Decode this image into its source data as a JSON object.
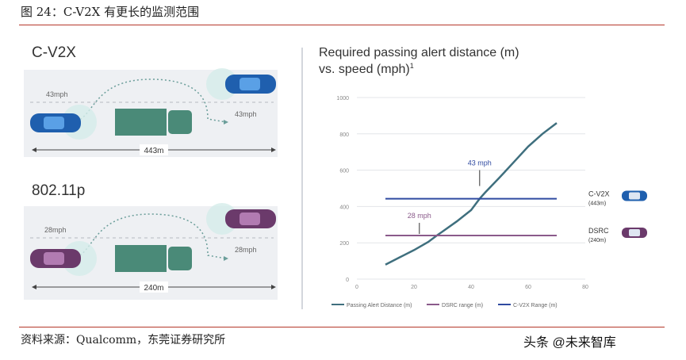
{
  "figure_title": "图 24：C-V2X 有更长的监测范围",
  "source": "资料来源：Qualcomm，东莞证券研究所",
  "watermark": "头条 @未来智库",
  "left_panel": {
    "top": {
      "heading": "C-V2X",
      "speed_left": "43mph",
      "speed_right": "43mph",
      "range": "443m"
    },
    "bottom": {
      "heading": "802.11p",
      "speed_left": "28mph",
      "speed_right": "28mph",
      "range": "240m"
    }
  },
  "colors": {
    "curve": "#3f6f7e",
    "cv2x": "#2f4aa0",
    "dsrc": "#8a5a8a",
    "car_blue": "#1f5fae",
    "car_purple": "#6b3a6b",
    "truck": "#4a8a78",
    "road": "#eef0f3"
  },
  "chart_data": {
    "type": "line",
    "title": "Required passing alert distance (m) vs. speed (mph)",
    "title_line1": "Required passing alert distance (m)",
    "title_line2": "vs. speed (mph)",
    "title_sup": "1",
    "xlim": [
      0,
      80
    ],
    "ylim": [
      0,
      1000
    ],
    "x_ticks": [
      "0",
      "20",
      "40",
      "60",
      "80"
    ],
    "y_ticks": [
      "0",
      "200",
      "400",
      "600",
      "800",
      "1000"
    ],
    "series": [
      {
        "name": "Passing Alert Distance (m)",
        "x": [
          10,
          15,
          20,
          25,
          28,
          30,
          35,
          40,
          43,
          45,
          50,
          55,
          60,
          65,
          70
        ],
        "y": [
          80,
          120,
          160,
          205,
          240,
          262,
          318,
          380,
          443,
          478,
          560,
          645,
          730,
          800,
          860
        ]
      },
      {
        "name": "DSRC range (m)",
        "x": [
          10,
          70
        ],
        "y": [
          240,
          240
        ]
      },
      {
        "name": "C-V2X Range (m)",
        "x": [
          10,
          70
        ],
        "y": [
          443,
          443
        ]
      }
    ],
    "annotations": [
      {
        "text": "43 mph",
        "x": 43,
        "y": 443
      },
      {
        "text": "28 mph",
        "x": 28,
        "y": 240
      }
    ],
    "side_labels": [
      {
        "text": "C-V2X",
        "sub": "(443m)"
      },
      {
        "text": "DSRC",
        "sub": "(240m)"
      }
    ],
    "legend": [
      "Passing Alert Distance (m)",
      "DSRC range (m)",
      "C-V2X Range (m)"
    ],
    "legend_position": "bottom"
  }
}
